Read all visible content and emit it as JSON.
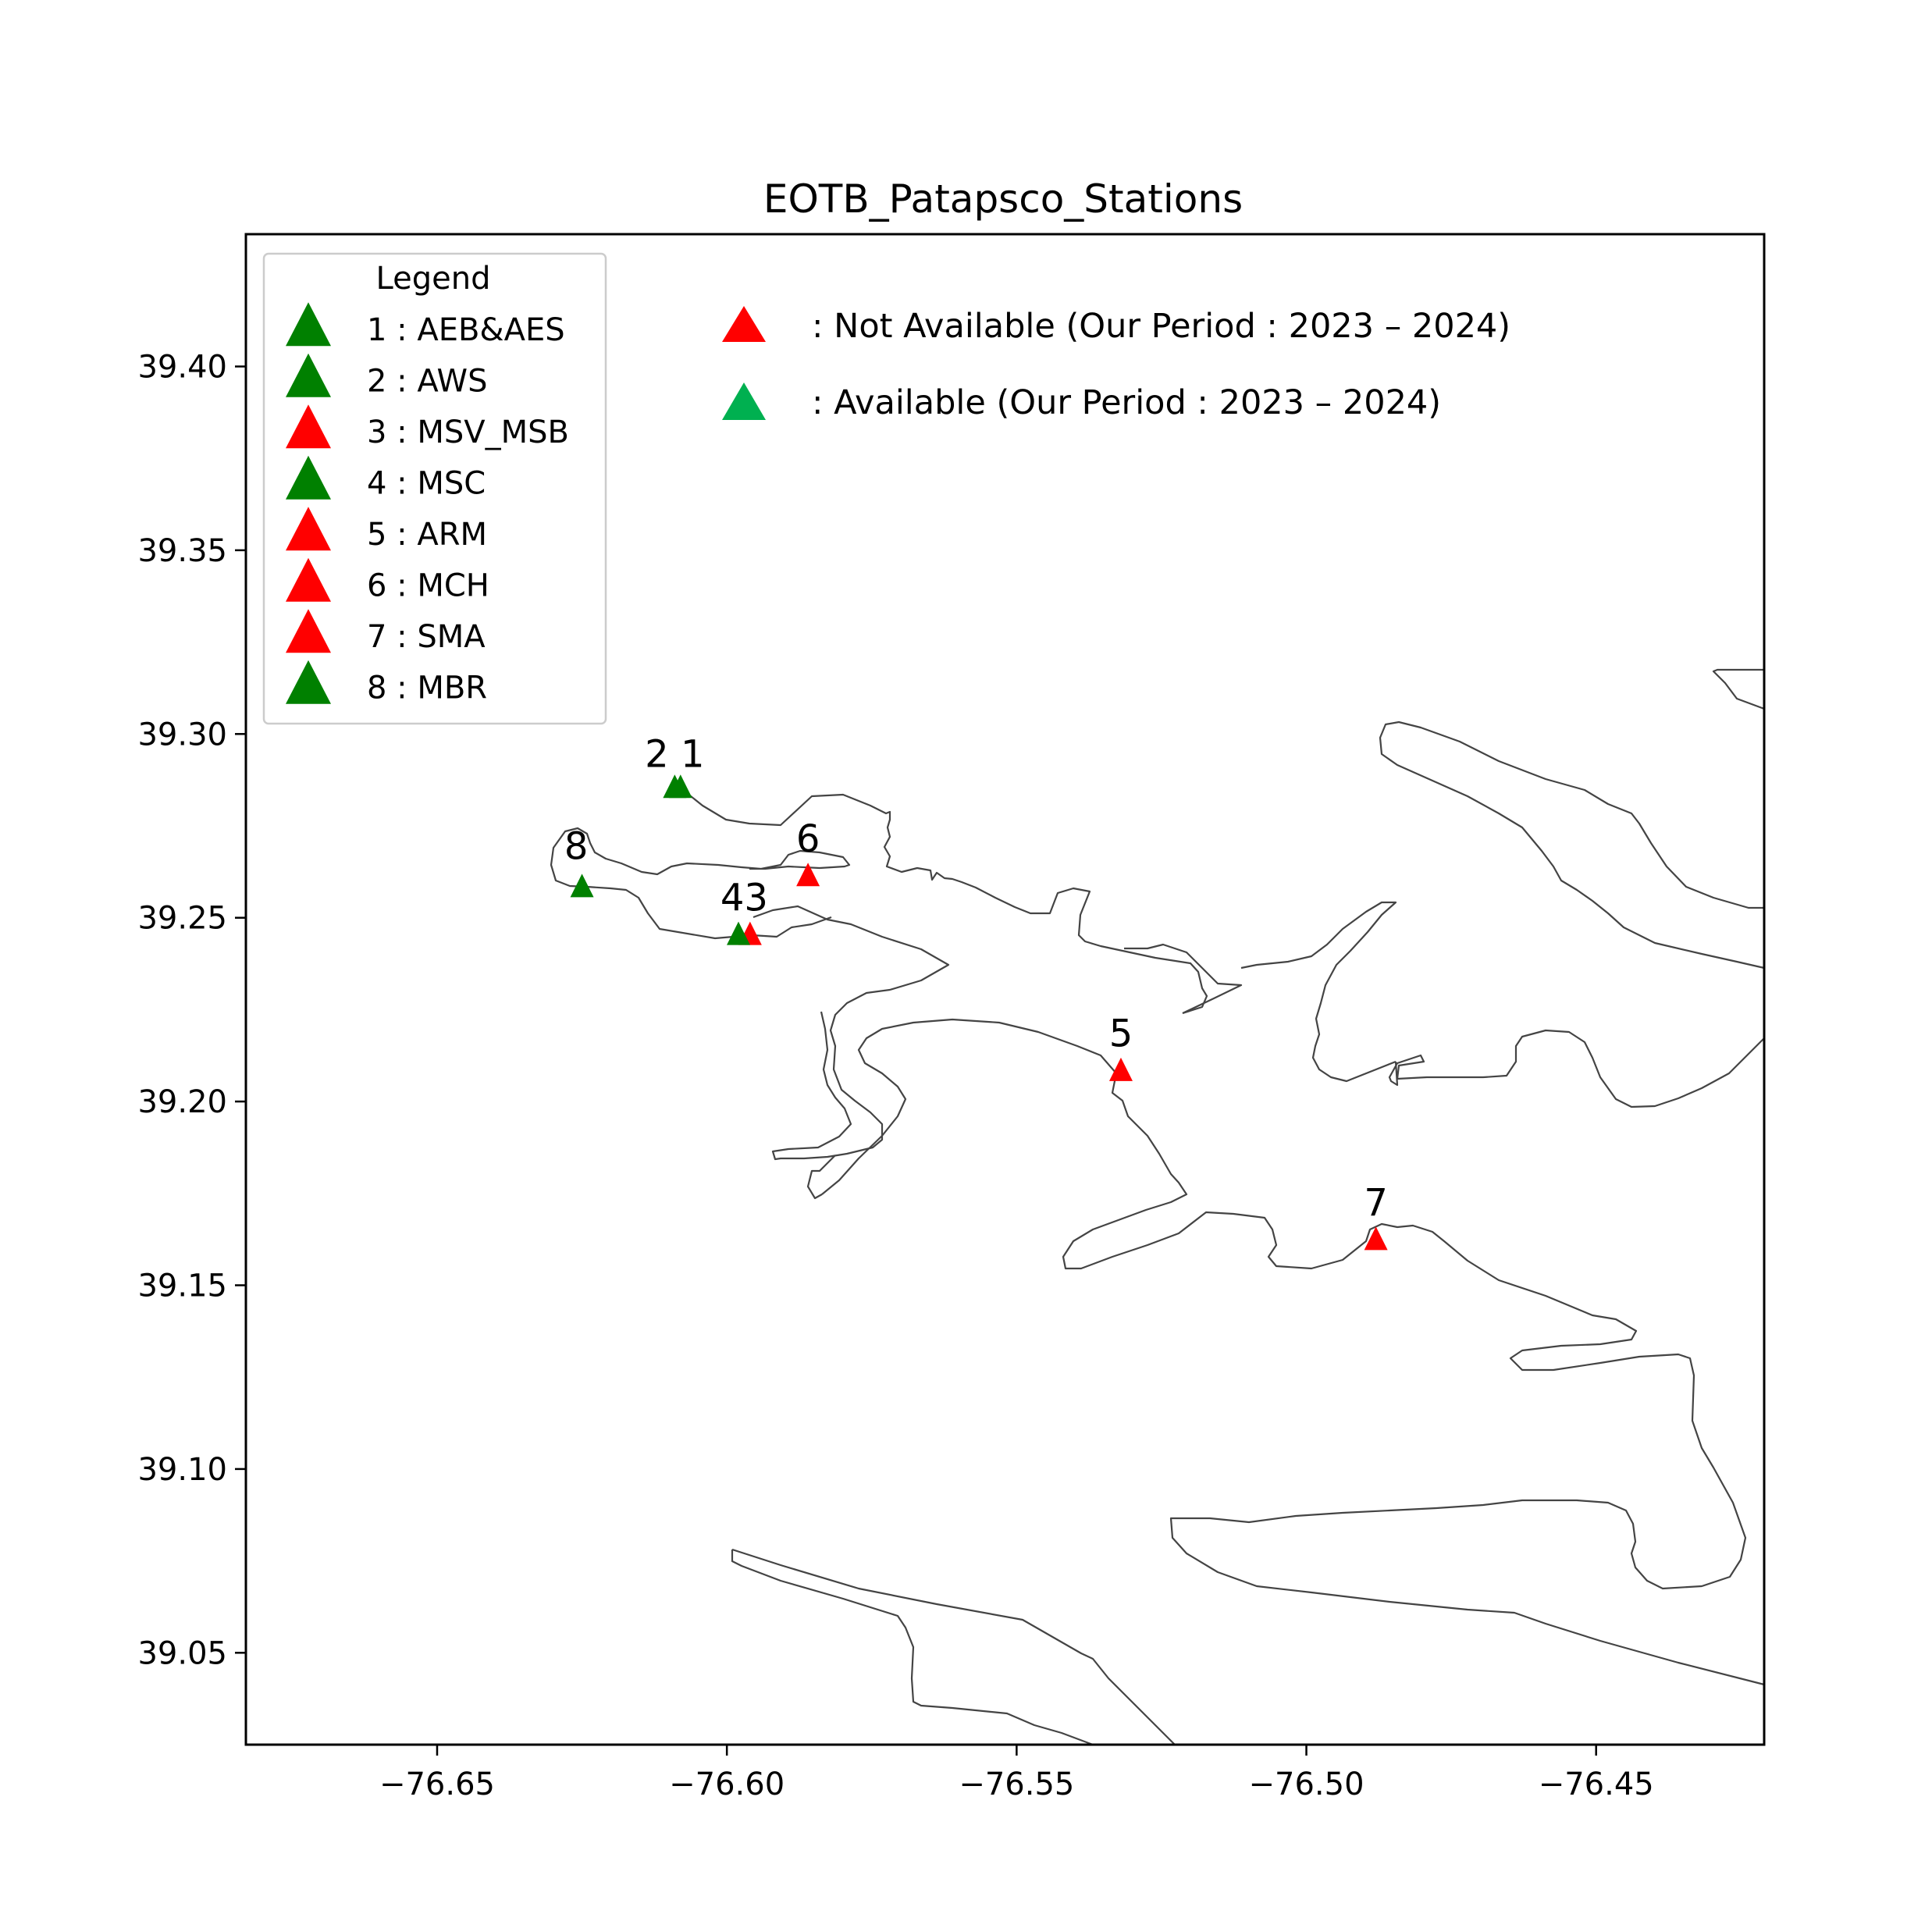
{
  "title": "EOTB_Patapsco_Stations",
  "colors": {
    "available_marker": "#008000",
    "not_available_marker": "#ff0000",
    "note_available_marker": "#00b050",
    "coastline": "#444444"
  },
  "axes": {
    "x_range": [
      -76.683,
      -76.421
    ],
    "y_range": [
      39.025,
      39.436
    ],
    "x_ticks": [
      {
        "value": -76.65,
        "label": "−76.65"
      },
      {
        "value": -76.6,
        "label": "−76.60"
      },
      {
        "value": -76.55,
        "label": "−76.55"
      },
      {
        "value": -76.5,
        "label": "−76.50"
      },
      {
        "value": -76.45,
        "label": "−76.45"
      }
    ],
    "y_ticks": [
      {
        "value": 39.05,
        "label": "39.05"
      },
      {
        "value": 39.1,
        "label": "39.10"
      },
      {
        "value": 39.15,
        "label": "39.15"
      },
      {
        "value": 39.2,
        "label": "39.20"
      },
      {
        "value": 39.25,
        "label": "39.25"
      },
      {
        "value": 39.3,
        "label": "39.30"
      },
      {
        "value": 39.35,
        "label": "39.35"
      },
      {
        "value": 39.4,
        "label": "39.40"
      }
    ]
  },
  "legend": {
    "title": "Legend",
    "placement": "upper-left",
    "items": [
      {
        "label": "1 : AEB&AES",
        "status": "available"
      },
      {
        "label": "2 : AWS",
        "status": "available"
      },
      {
        "label": "3 : MSV_MSB",
        "status": "not_available"
      },
      {
        "label": "4 : MSC",
        "status": "available"
      },
      {
        "label": "5 : ARM",
        "status": "not_available"
      },
      {
        "label": "6 : MCH",
        "status": "not_available"
      },
      {
        "label": "7 : SMA",
        "status": "not_available"
      },
      {
        "label": "8 : MBR",
        "status": "available"
      }
    ]
  },
  "notes": {
    "not_available": ": Not Available (Our Period : 2023 – 2024)",
    "available": ": Available (Our Period : 2023 – 2024)"
  },
  "chart_data": {
    "type": "scatter",
    "title": "EOTB_Patapsco_Stations",
    "xlim": [
      -76.683,
      -76.421
    ],
    "ylim": [
      39.025,
      39.436
    ],
    "grid": false,
    "legend_placement": "upper-left",
    "stations": [
      {
        "id": "1",
        "name": "AEB&AES",
        "lon": -76.608,
        "lat": 39.285,
        "status": "available"
      },
      {
        "id": "2",
        "name": "AWS",
        "lon": -76.609,
        "lat": 39.285,
        "status": "available"
      },
      {
        "id": "3",
        "name": "MSV_MSB",
        "lon": -76.596,
        "lat": 39.245,
        "status": "not_available"
      },
      {
        "id": "4",
        "name": "MSC",
        "lon": -76.598,
        "lat": 39.245,
        "status": "available"
      },
      {
        "id": "5",
        "name": "ARM",
        "lon": -76.532,
        "lat": 39.208,
        "status": "not_available"
      },
      {
        "id": "6",
        "name": "MCH",
        "lon": -76.586,
        "lat": 39.261,
        "status": "not_available"
      },
      {
        "id": "7",
        "name": "SMA",
        "lon": -76.488,
        "lat": 39.162,
        "status": "not_available"
      },
      {
        "id": "8",
        "name": "MBR",
        "lon": -76.625,
        "lat": 39.258,
        "status": "available"
      }
    ],
    "station_labels": [
      {
        "text": "2 1",
        "lon": -76.609,
        "lat": 39.291
      },
      {
        "text": "6",
        "lon": -76.586,
        "lat": 39.268
      },
      {
        "text": "8",
        "lon": -76.626,
        "lat": 39.266
      },
      {
        "text": "43",
        "lon": -76.597,
        "lat": 39.252
      },
      {
        "text": "5",
        "lon": -76.532,
        "lat": 39.215
      },
      {
        "text": "7",
        "lon": -76.488,
        "lat": 39.169
      }
    ]
  }
}
